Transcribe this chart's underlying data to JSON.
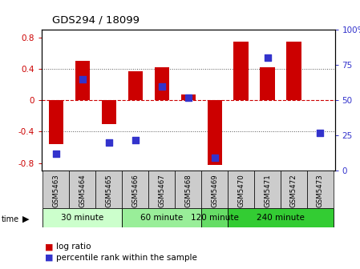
{
  "title": "GDS294 / 18099",
  "samples": [
    "GSM5463",
    "GSM5464",
    "GSM5465",
    "GSM5466",
    "GSM5467",
    "GSM5468",
    "GSM5469",
    "GSM5470",
    "GSM5471",
    "GSM5472",
    "GSM5473"
  ],
  "log_ratio": [
    -0.56,
    0.5,
    -0.3,
    0.37,
    0.42,
    0.07,
    -0.82,
    0.75,
    0.42,
    0.75,
    0.0
  ],
  "percentile_rank": [
    12,
    65,
    20,
    22,
    60,
    52,
    9,
    null,
    80,
    null,
    27
  ],
  "groups": [
    {
      "label": "30 minute",
      "start": 0,
      "end": 3
    },
    {
      "label": "60 minute",
      "start": 3,
      "end": 6
    },
    {
      "label": "120 minute",
      "start": 6,
      "end": 7
    },
    {
      "label": "240 minute",
      "start": 7,
      "end": 11
    }
  ],
  "group_colors": [
    "#ccffcc",
    "#99ee99",
    "#66dd66",
    "#33cc33"
  ],
  "bar_color": "#cc0000",
  "dot_color": "#3333cc",
  "ylim_left": [
    -0.9,
    0.9
  ],
  "y_left_ticks": [
    -0.8,
    -0.4,
    0.0,
    0.4,
    0.8
  ],
  "y_right_ticks": [
    0,
    25,
    50,
    75,
    100
  ],
  "bg_color": "#ffffff",
  "bar_width": 0.55,
  "dot_size": 35,
  "sample_bg": "#cccccc",
  "grid_dotted_color": "#555555",
  "zero_line_color": "#cc0000"
}
